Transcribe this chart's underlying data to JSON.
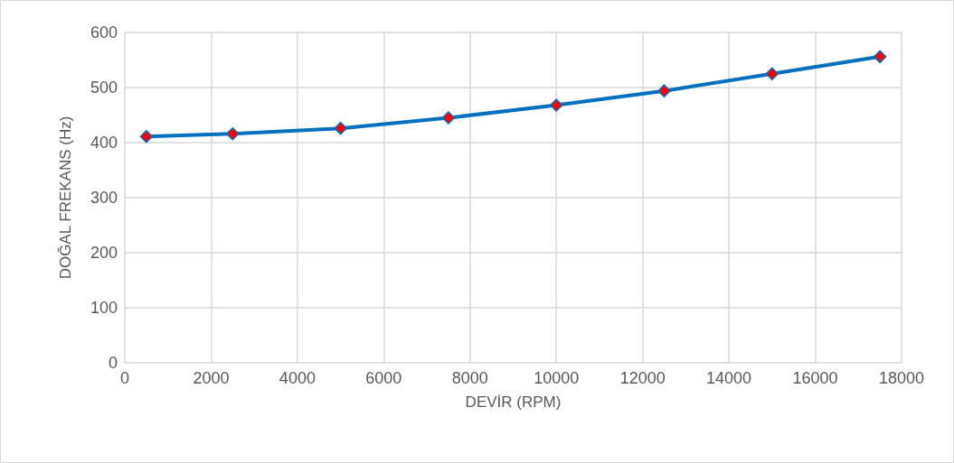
{
  "chart_data": {
    "type": "line",
    "xlabel": "DEVİR (RPM)",
    "ylabel": "DOĞAL FREKANS (Hz)",
    "x": [
      500,
      2500,
      5000,
      7500,
      10000,
      12500,
      15000,
      17500
    ],
    "series": [
      {
        "color": "#0070c0",
        "colors": [
          "#ff0000",
          "#ff0000",
          "#ff0000",
          "#ff0000",
          "#ff0000",
          "#ff0000",
          "#ff0000",
          "#ff0000"
        ],
        "values": [
          411,
          416,
          426,
          445,
          468,
          494,
          525,
          556
        ]
      }
    ],
    "xlim": [
      0,
      18000
    ],
    "xticks": [
      0,
      2000,
      4000,
      6000,
      8000,
      10000,
      12000,
      14000,
      16000,
      18000
    ],
    "ylim": [
      0,
      600
    ],
    "yticks": [
      0,
      100,
      200,
      300,
      400,
      500,
      600
    ],
    "grid": true,
    "marker": "diamond",
    "line_style": "solid"
  }
}
